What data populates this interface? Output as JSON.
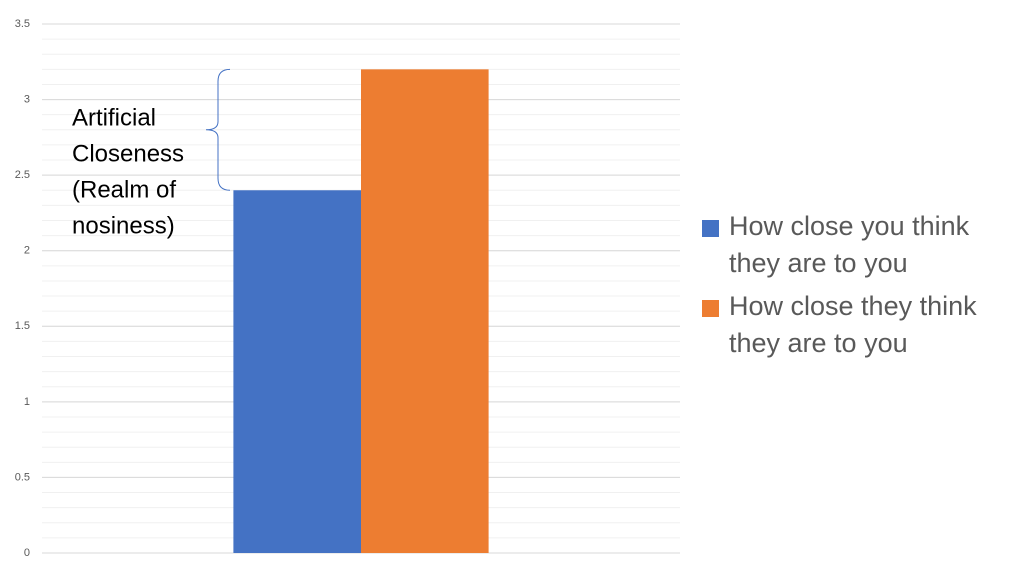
{
  "chart_data": {
    "type": "bar",
    "categories": [
      null
    ],
    "series": [
      {
        "name": "How close you think they are to you",
        "color": "#4472c4",
        "values": [
          2.4
        ]
      },
      {
        "name": "How close they think they are to you",
        "color": "#ed7d31",
        "values": [
          3.2
        ]
      }
    ],
    "ylim": [
      0,
      3.5
    ],
    "yticks": [
      0,
      0.5,
      1,
      1.5,
      2,
      2.5,
      3,
      3.5
    ],
    "grid": true,
    "minor_grid_step": 0.1,
    "legend": "right",
    "annotation": [
      "Artificial",
      "Closeness",
      "(Realm of",
      "nosiness)"
    ]
  }
}
